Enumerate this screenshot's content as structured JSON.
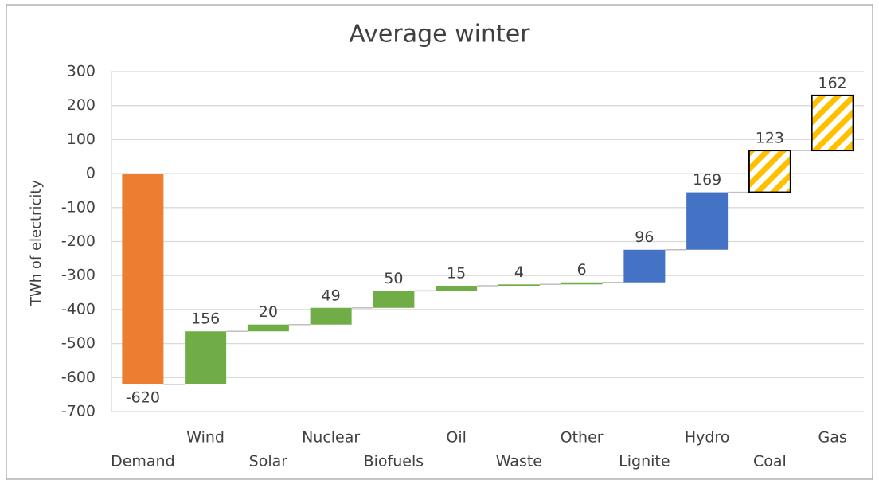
{
  "chart_data": {
    "type": "waterfall",
    "title": "Average winter",
    "y_label": "TWh of electricity",
    "categories": [
      "Demand",
      "Wind",
      "Solar",
      "Nuclear",
      "Biofuels",
      "Oil",
      "Waste",
      "Other",
      "Lignite",
      "Hydro",
      "Coal",
      "Gas"
    ],
    "values": [
      -620,
      156,
      20,
      49,
      50,
      15,
      4,
      6,
      96,
      169,
      123,
      162
    ],
    "colors": [
      "#ed7d31",
      "#70ad47",
      "#70ad47",
      "#70ad47",
      "#70ad47",
      "#70ad47",
      "#70ad47",
      "#70ad47",
      "#4472c4",
      "#4472c4",
      "#ffc000",
      "#ffc000"
    ],
    "hatched": [
      false,
      false,
      false,
      false,
      false,
      false,
      false,
      false,
      false,
      false,
      true,
      true
    ],
    "ylim": [
      -700,
      300
    ],
    "yticks": [
      -700,
      -600,
      -500,
      -400,
      -300,
      -200,
      -100,
      0,
      100,
      200,
      300
    ],
    "grid": true
  }
}
